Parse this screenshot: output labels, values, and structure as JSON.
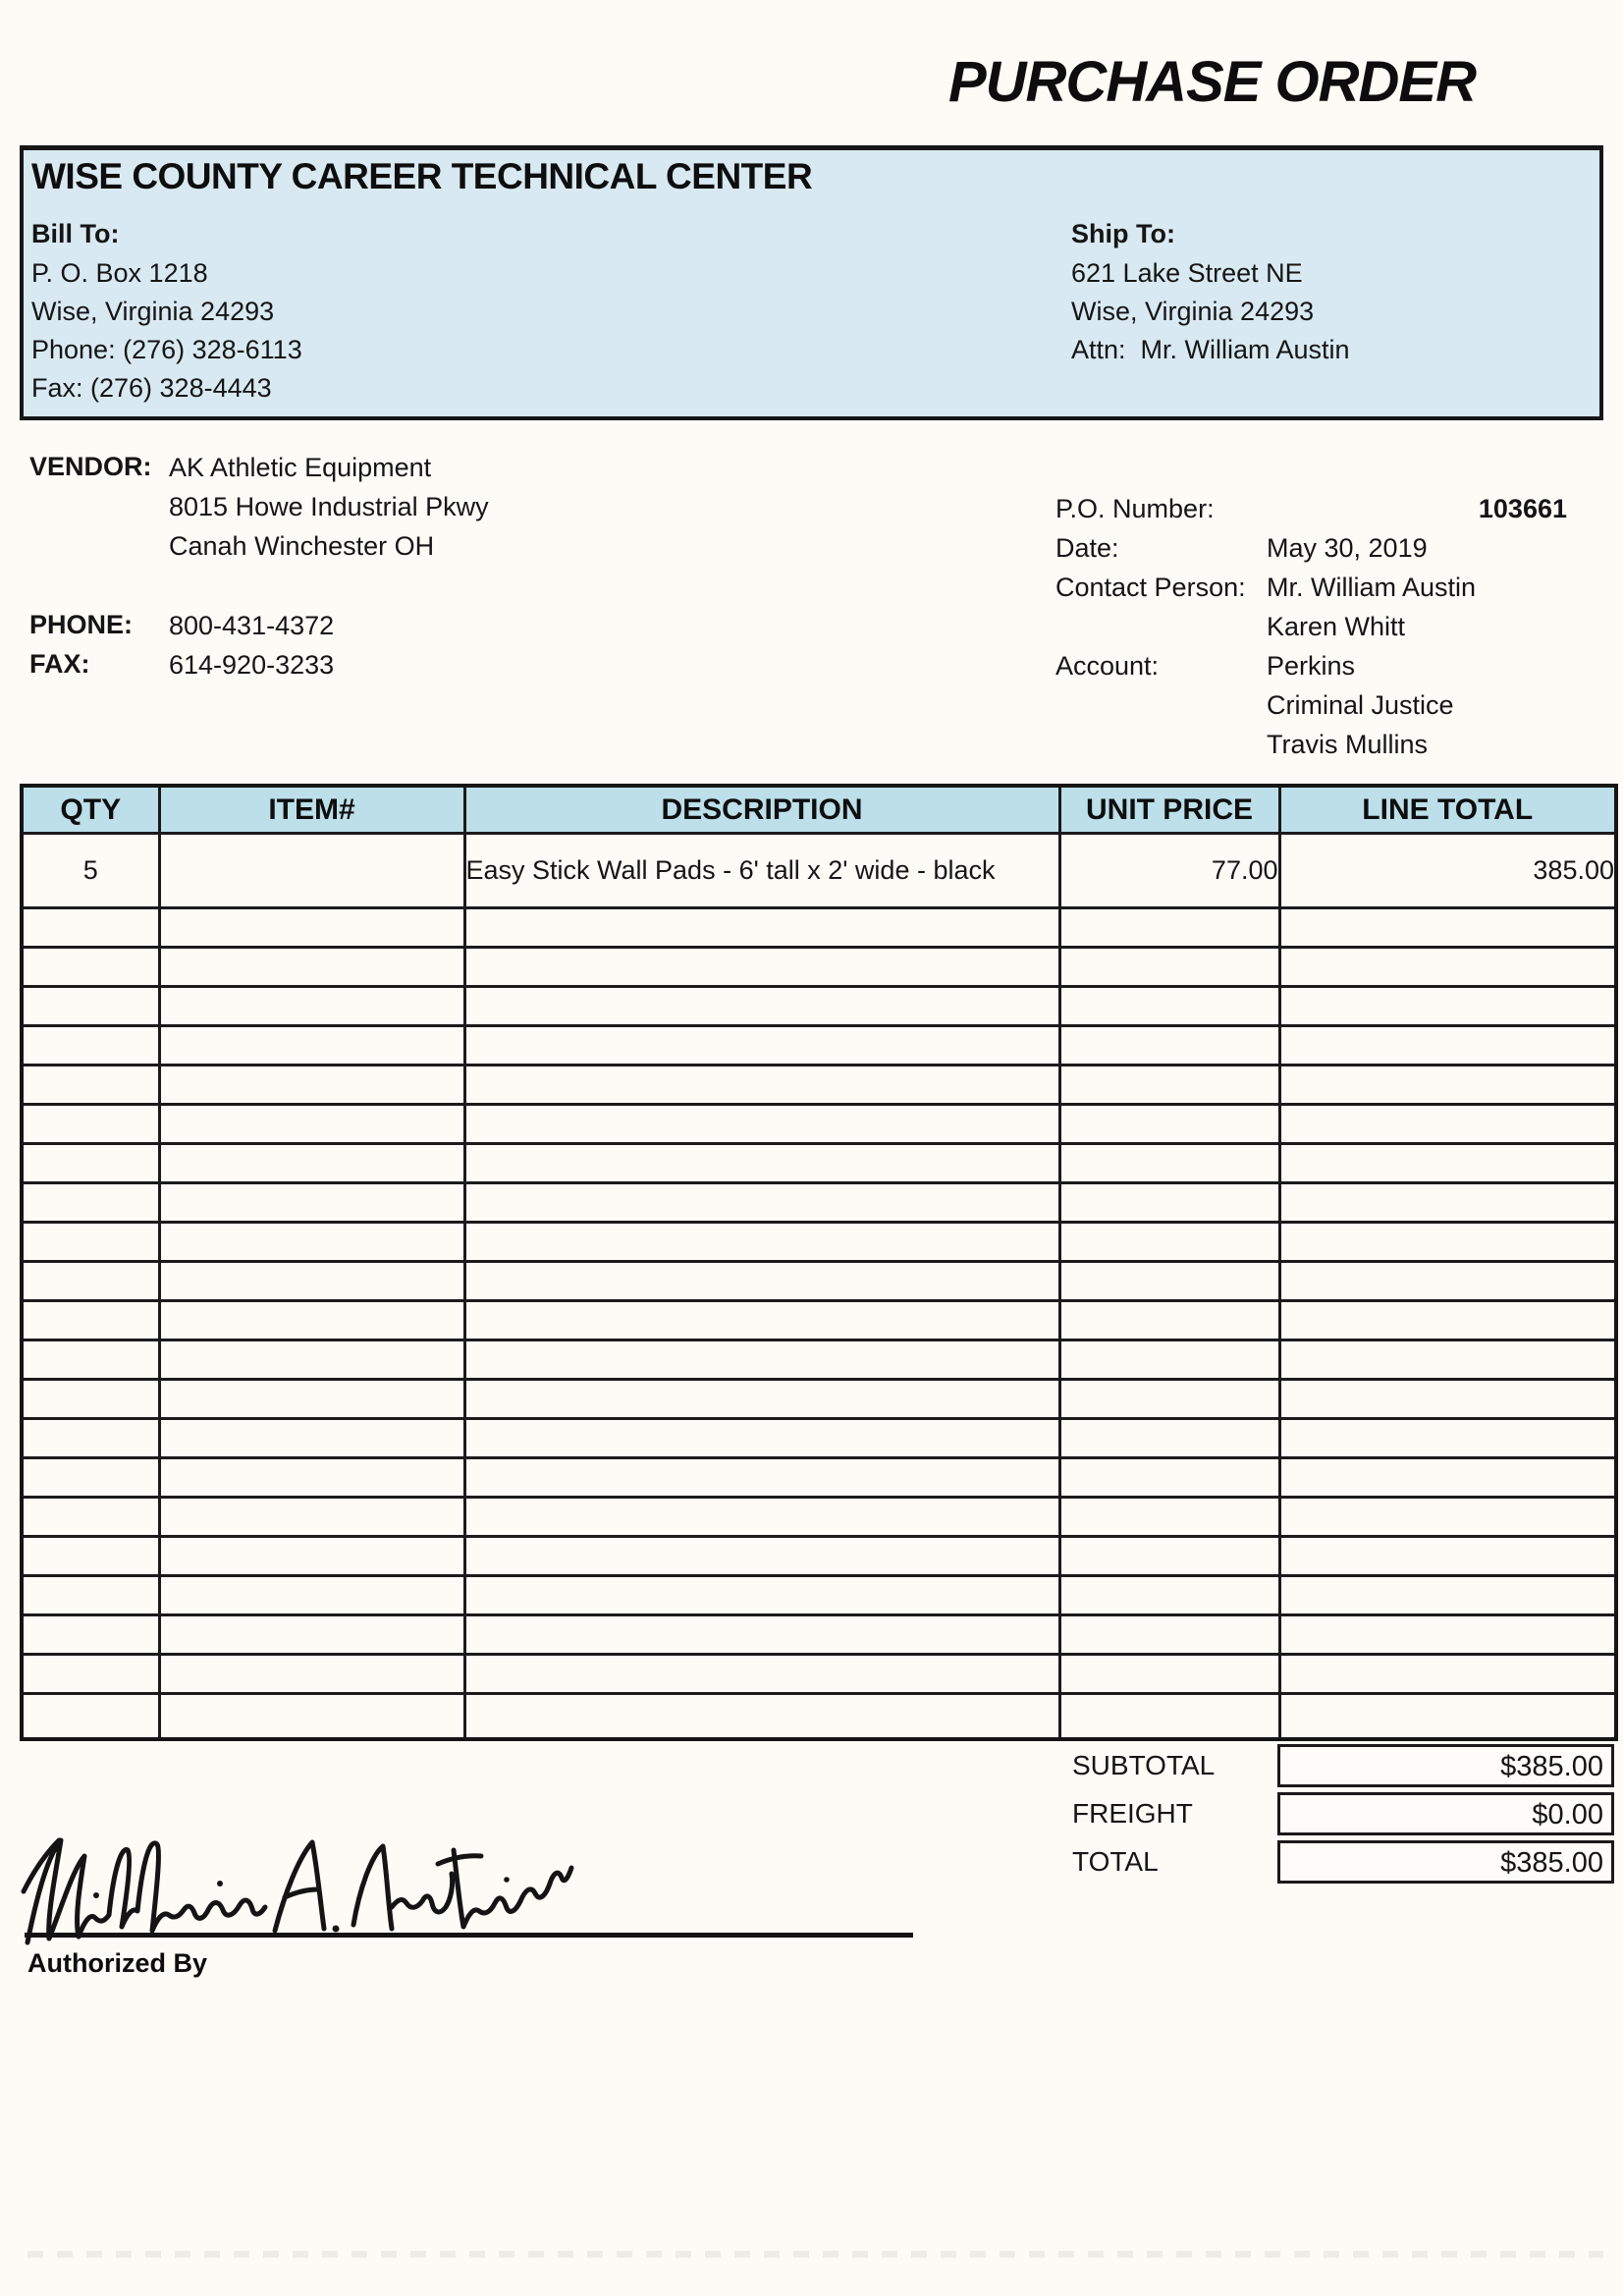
{
  "title": "PURCHASE ORDER",
  "company_box": {
    "name": "WISE COUNTY CAREER TECHNICAL CENTER",
    "bill_to": {
      "label": "Bill To:",
      "lines": [
        "P. O. Box 1218",
        "Wise, Virginia 24293",
        "Phone: (276) 328-6113",
        "Fax: (276) 328-4443"
      ]
    },
    "ship_to": {
      "label": "Ship To:",
      "lines": [
        "621 Lake Street NE",
        "Wise, Virginia 24293",
        "Attn:  Mr. William Austin"
      ]
    }
  },
  "vendor": {
    "label": "VENDOR:",
    "name": "AK Athletic Equipment",
    "address_lines": [
      "8015 Howe Industrial Pkwy",
      "Canah Winchester OH"
    ],
    "phone_label": "PHONE:",
    "phone": "800-431-4372",
    "fax_label": "FAX:",
    "fax": "614-920-3233"
  },
  "order_info": {
    "po_label": "P.O. Number:",
    "po_number": "103661",
    "date_label": "Date:",
    "date": "May 30, 2019",
    "contact_label": "Contact Person:",
    "contacts": [
      "Mr. William Austin",
      "Karen Whitt"
    ],
    "account_label": "Account:",
    "accounts": [
      "Perkins",
      "Criminal Justice",
      "Travis Mullins"
    ]
  },
  "table": {
    "headers": [
      "QTY",
      "ITEM#",
      "DESCRIPTION",
      "UNIT PRICE",
      "LINE TOTAL"
    ],
    "rows": [
      {
        "qty": "5",
        "item": "",
        "description": "Easy Stick Wall Pads - 6' tall x 2' wide - black",
        "unit_price": "77.00",
        "line_total": "385.00"
      }
    ],
    "empty_row_count": 21
  },
  "totals": [
    {
      "label": "SUBTOTAL",
      "value": "$385.00"
    },
    {
      "label": "FREIGHT",
      "value": "$0.00"
    },
    {
      "label": "TOTAL",
      "value": "$385.00"
    }
  ],
  "signature": {
    "name": "William A. Austin",
    "label": "Authorized By"
  },
  "colors": {
    "paper": "#fcfbf6",
    "company_box_bg": "#d8e9f2",
    "table_header_bg": "#bcdfe9",
    "border": "#1a1a1a",
    "ink": "#151515"
  }
}
